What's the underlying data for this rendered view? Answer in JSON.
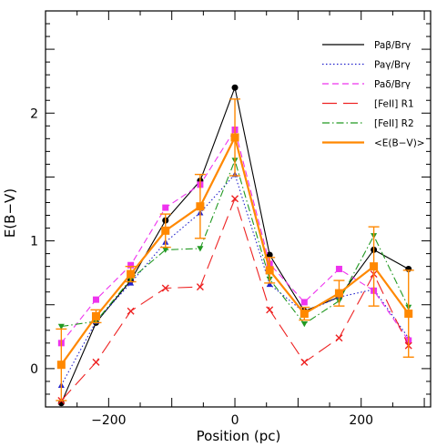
{
  "chart_data": {
    "type": "line",
    "xlabel": "Position (pc)",
    "ylabel": "E(B−V)",
    "xlim": [
      -300,
      310
    ],
    "ylim": [
      -0.3,
      2.8
    ],
    "xticks": [
      -200,
      0,
      200
    ],
    "xtick_labels": [
      "−200",
      "0",
      "200"
    ],
    "yticks": [
      0,
      1,
      2
    ],
    "ytick_labels": [
      "0",
      "1",
      "2"
    ],
    "grid": false,
    "legend_position": "top-right",
    "x": [
      -275,
      -220,
      -165,
      -110,
      -55,
      0,
      55,
      110,
      165,
      220,
      275
    ],
    "series": [
      {
        "name": "Paβ/Brγ",
        "color": "#000000",
        "dash": "",
        "marker": "circle",
        "values": [
          -0.27,
          0.36,
          0.69,
          1.16,
          1.47,
          2.2,
          0.89,
          0.45,
          0.56,
          0.93,
          0.78
        ]
      },
      {
        "name": "Paγ/Brγ",
        "color": "#2222cc",
        "dash": "1.5,2.5",
        "marker": "triangle",
        "values": [
          -0.13,
          0.37,
          0.67,
          0.99,
          1.22,
          1.52,
          0.66,
          0.44,
          0.56,
          0.62,
          0.24
        ]
      },
      {
        "name": "Paδ/Brγ",
        "color": "#ee33ee",
        "dash": "7,4",
        "marker": "square",
        "values": [
          0.2,
          0.54,
          0.81,
          1.26,
          1.44,
          1.87,
          0.82,
          0.52,
          0.78,
          0.61,
          0.22
        ]
      },
      {
        "name": "[FeII] R1",
        "color": "#ee2222",
        "dash": "16,7",
        "marker": "x",
        "values": [
          -0.25,
          0.05,
          0.45,
          0.63,
          0.64,
          1.33,
          0.46,
          0.05,
          0.24,
          0.74,
          0.18
        ]
      },
      {
        "name": "[FeII] R2",
        "color": "#229922",
        "dash": "8,3,1.5,3",
        "marker": "triangle-down",
        "values": [
          0.33,
          0.37,
          0.7,
          0.93,
          0.94,
          1.63,
          0.7,
          0.35,
          0.53,
          1.04,
          0.48
        ]
      },
      {
        "name": "<E(B−V)>",
        "color": "#ff8800",
        "dash": "",
        "marker": "square-large",
        "width": 2.2,
        "values": [
          0.03,
          0.41,
          0.74,
          1.08,
          1.27,
          1.81,
          0.77,
          0.43,
          0.59,
          0.8,
          0.43
        ],
        "errors": [
          0.28,
          0.05,
          0.06,
          0.13,
          0.25,
          0.3,
          0.1,
          0.05,
          0.1,
          0.31,
          0.34
        ]
      }
    ]
  }
}
